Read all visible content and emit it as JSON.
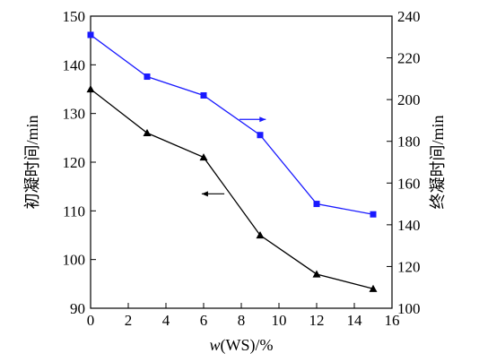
{
  "chart_data": {
    "type": "line",
    "x": [
      0,
      3,
      6,
      9,
      12,
      15
    ],
    "xlabel_italic": "w",
    "xlabel_rest": "(WS)/%",
    "xlim": [
      0,
      16
    ],
    "xticks": [
      0,
      2,
      4,
      6,
      8,
      10,
      12,
      14,
      16
    ],
    "ylabel_left": "初凝时间/min",
    "ylim_left": [
      90,
      150
    ],
    "yticks_left": [
      90,
      100,
      110,
      120,
      130,
      140,
      150
    ],
    "ylabel_right": "终凝时间/min",
    "ylim_right": [
      100,
      240
    ],
    "yticks_right": [
      100,
      120,
      140,
      160,
      180,
      200,
      220,
      240
    ],
    "series": [
      {
        "axis": "left",
        "values": [
          135,
          126,
          121,
          105,
          97,
          94
        ],
        "color": "#000000",
        "marker": "triangle"
      },
      {
        "axis": "right",
        "values": [
          231,
          211,
          202,
          183,
          150,
          145
        ],
        "color": "#1a1aff",
        "marker": "square"
      }
    ],
    "annotations": [
      {
        "type": "arrow",
        "direction": "left",
        "color": "#000000",
        "target_axis": "left"
      },
      {
        "type": "arrow",
        "direction": "right",
        "color": "#1a1aff",
        "target_axis": "right"
      }
    ],
    "grid": false
  }
}
